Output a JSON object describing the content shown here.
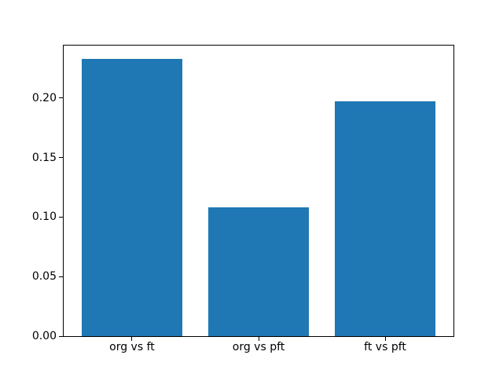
{
  "figure": {
    "background": "#ffffff",
    "axes_edge_color": "#000000"
  },
  "chart_data": {
    "type": "bar",
    "categories": [
      "org vs ft",
      "org vs pft",
      "ft vs pft"
    ],
    "values": [
      0.233,
      0.108,
      0.197
    ],
    "bar_color": "#1f77b4",
    "bar_width": 0.8,
    "title": "",
    "xlabel": "",
    "ylabel": "",
    "xlim": [
      -0.54,
      2.54
    ],
    "ylim": [
      0,
      0.244
    ],
    "yticks": [
      {
        "value": 0.0,
        "label": "0.00"
      },
      {
        "value": 0.05,
        "label": "0.05"
      },
      {
        "value": 0.1,
        "label": "0.10"
      },
      {
        "value": 0.15,
        "label": "0.15"
      },
      {
        "value": 0.2,
        "label": "0.20"
      }
    ],
    "grid": false,
    "legend": "none"
  }
}
